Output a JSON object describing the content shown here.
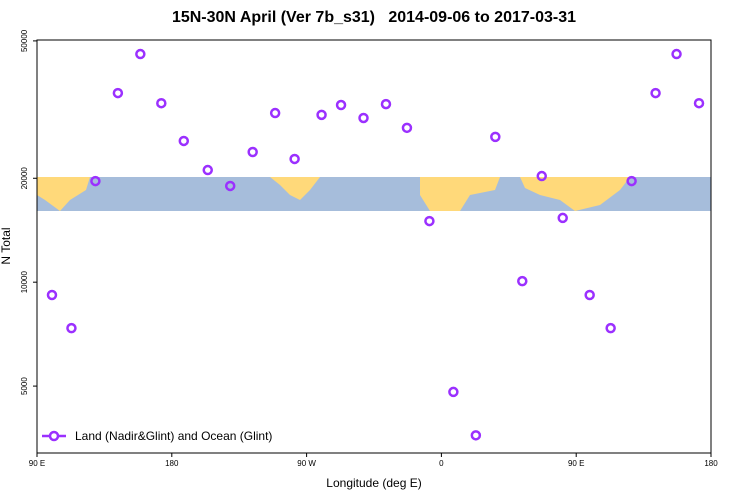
{
  "chart_data": {
    "type": "scatter",
    "title": "15N-30N April (Ver 7b_s31)   2014-09-06 to 2017-03-31",
    "x_label": "Longitude (deg E)",
    "y_label": "N Total",
    "ylog": true,
    "xlim": [
      90,
      540
    ],
    "ylim": [
      3200,
      50300
    ],
    "xticks": [
      {
        "value": 90,
        "label": "90 E"
      },
      {
        "value": 180,
        "label": "180"
      },
      {
        "value": 270,
        "label": "90 W"
      },
      {
        "value": 360,
        "label": "0"
      },
      {
        "value": 450,
        "label": "90 E"
      },
      {
        "value": 540,
        "label": "180"
      }
    ],
    "yticks": [
      5000,
      10000,
      20000,
      50000
    ],
    "legend": "lower left",
    "series": [
      {
        "name": "Land (Nadir&Glint) and Ocean (Glint)",
        "color": "#9b30ff",
        "x": [
          100,
          113,
          129,
          144,
          159,
          173,
          188,
          204,
          219,
          234,
          249,
          262,
          280,
          293,
          308,
          323,
          337,
          352,
          368,
          383,
          396,
          414,
          427,
          441,
          459,
          473,
          487,
          503,
          517,
          532
        ],
        "values": [
          9180,
          7360,
          19630,
          35300,
          45800,
          33000,
          25650,
          21130,
          19000,
          23830,
          30900,
          22750,
          30530,
          32600,
          29900,
          32800,
          28000,
          15030,
          4810,
          3600,
          26360,
          10070,
          20300,
          15350,
          9180,
          7360,
          19630,
          35300,
          45800,
          33000
        ]
      }
    ]
  }
}
